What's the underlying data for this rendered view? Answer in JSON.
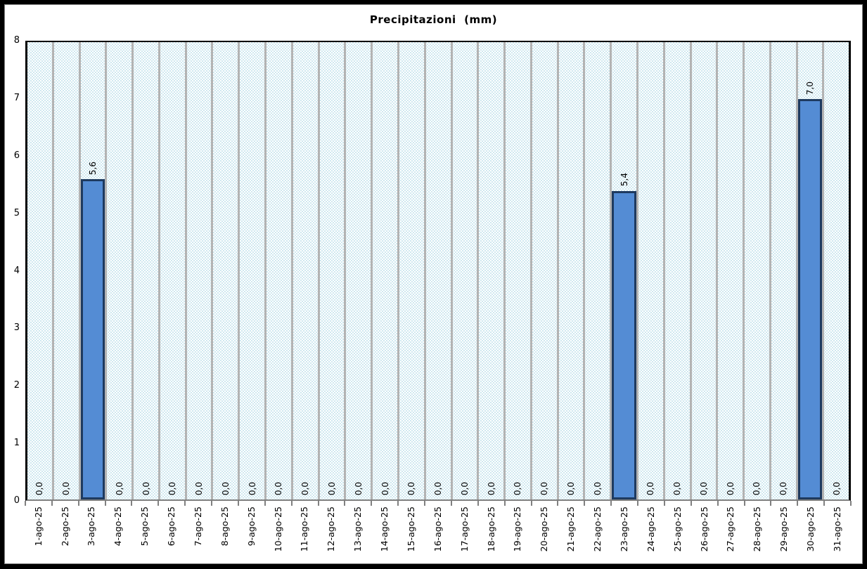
{
  "title": "Precipitazioni  (mm)",
  "chart_data": {
    "type": "bar",
    "title": "Precipitazioni  (mm)",
    "xlabel": "",
    "ylabel": "",
    "categories": [
      "1-ago-25",
      "2-ago-25",
      "3-ago-25",
      "4-ago-25",
      "5-ago-25",
      "6-ago-25",
      "7-ago-25",
      "8-ago-25",
      "9-ago-25",
      "10-ago-25",
      "11-ago-25",
      "12-ago-25",
      "13-ago-25",
      "14-ago-25",
      "15-ago-25",
      "16-ago-25",
      "17-ago-25",
      "18-ago-25",
      "19-ago-25",
      "20-ago-25",
      "21-ago-25",
      "22-ago-25",
      "23-ago-25",
      "24-ago-25",
      "25-ago-25",
      "26-ago-25",
      "27-ago-25",
      "28-ago-25",
      "29-ago-25",
      "30-ago-25",
      "31-ago-25"
    ],
    "values": [
      0,
      0,
      5.6,
      0,
      0,
      0,
      0,
      0,
      0,
      0,
      0,
      0,
      0,
      0,
      0,
      0,
      0,
      0,
      0,
      0,
      0,
      0,
      5.4,
      0,
      0,
      0,
      0,
      0,
      0,
      7.0,
      0
    ],
    "value_labels": [
      "0,0",
      "0,0",
      "5,6",
      "0,0",
      "0,0",
      "0,0",
      "0,0",
      "0,0",
      "0,0",
      "0,0",
      "0,0",
      "0,0",
      "0,0",
      "0,0",
      "0,0",
      "0,0",
      "0,0",
      "0,0",
      "0,0",
      "0,0",
      "0,0",
      "0,0",
      "5,4",
      "0,0",
      "0,0",
      "0,0",
      "0,0",
      "0,0",
      "0,0",
      "7,0",
      "0,0"
    ],
    "ylim": [
      0,
      8
    ],
    "yticks": [
      "0",
      "1",
      "2",
      "3",
      "4",
      "5",
      "6",
      "7",
      "8"
    ],
    "grid": "vertical category gridlines only",
    "legend_position": "none",
    "colors": {
      "bar_fill": "#548cd4",
      "bar_border": "#1e3a5f",
      "gridline": "#b3b3b3",
      "plot_pattern_blue": "#cfe8f0",
      "plot_pattern_white": "#ffffff",
      "axis_black": "#000000",
      "axis_gray": "#808080",
      "frame": "#000000",
      "background": "#ffffff"
    }
  }
}
